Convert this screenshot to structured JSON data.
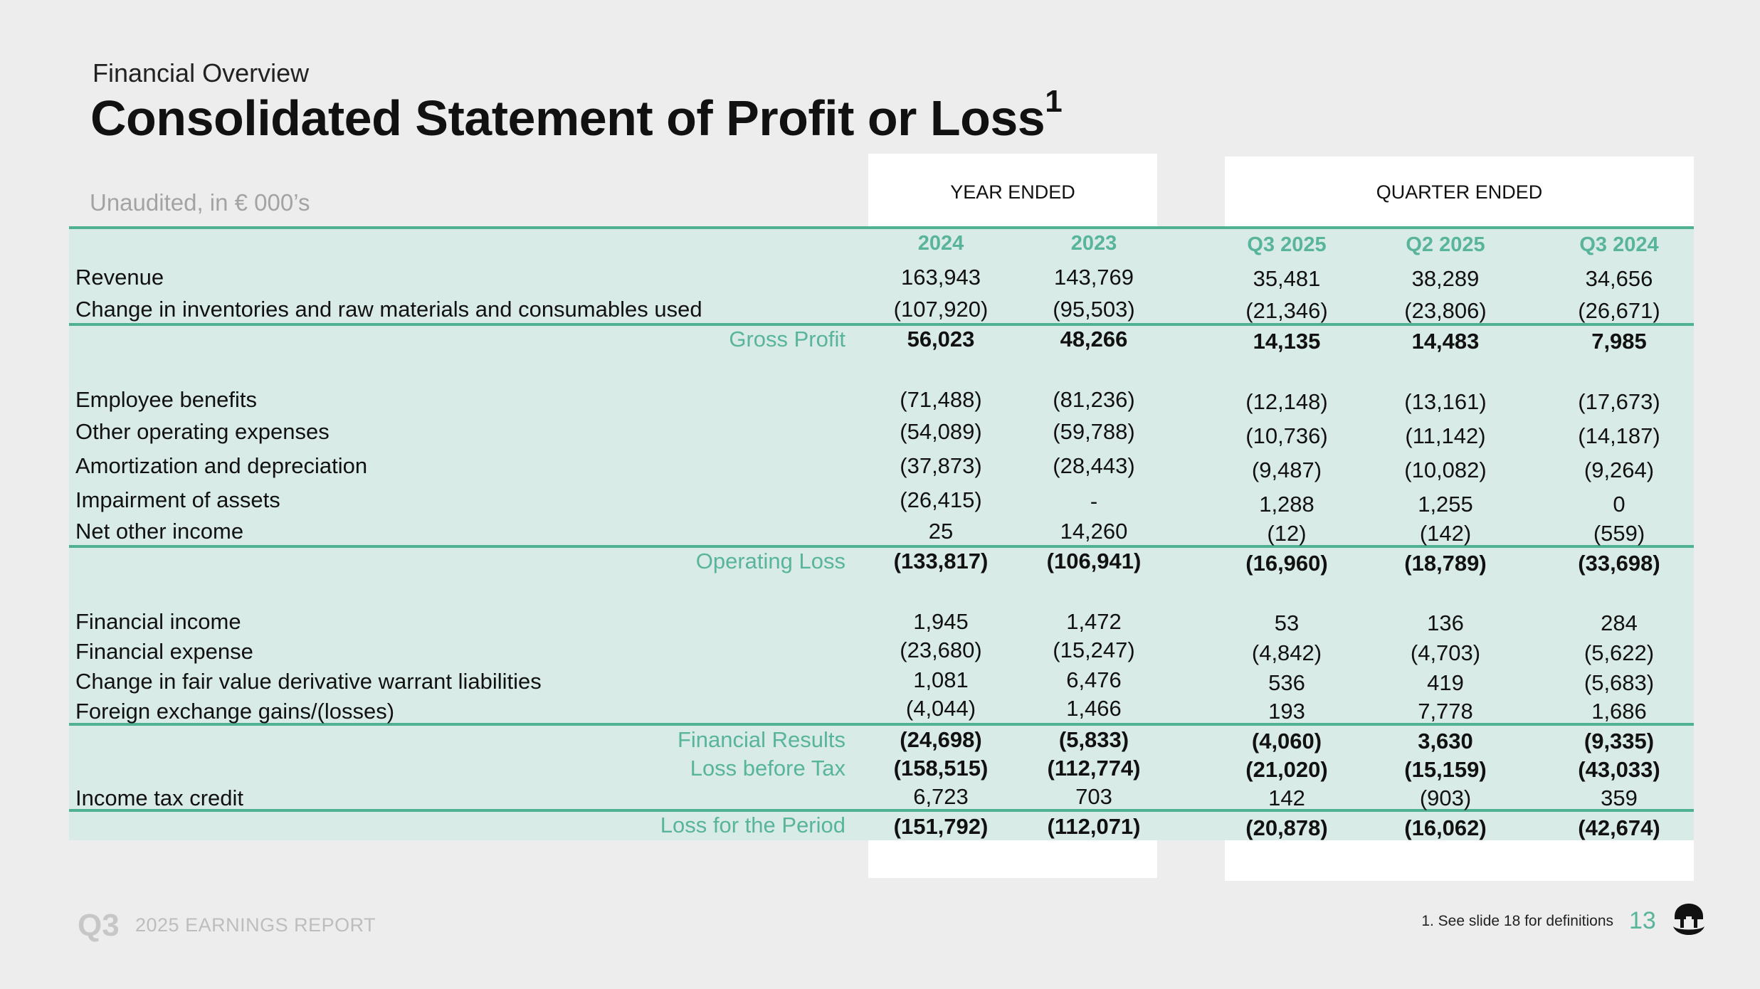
{
  "header": {
    "kicker": "Financial Overview",
    "title": "Consolidated Statement of Profit or Loss",
    "title_sup": "1",
    "subtitle": "Unaudited, in € 000’s"
  },
  "groups": {
    "year": "YEAR ENDED",
    "quarter": "QUARTER ENDED"
  },
  "columns": [
    "2024",
    "2023",
    "Q3 2025",
    "Q2 2025",
    "Q3 2024"
  ],
  "rows": [
    {
      "label": "Revenue",
      "values": [
        "163,943",
        "143,769",
        "35,481",
        "38,289",
        "34,656"
      ]
    },
    {
      "label": "Change in inventories and raw materials and consumables used",
      "values": [
        "(107,920)",
        "(95,503)",
        "(21,346)",
        "(23,806)",
        "(26,671)"
      ]
    },
    {
      "label": "Gross Profit",
      "values": [
        "56,023",
        "48,266",
        "14,135",
        "14,483",
        "7,985"
      ]
    },
    {
      "label": "Employee benefits",
      "values": [
        "(71,488)",
        "(81,236)",
        "(12,148)",
        "(13,161)",
        "(17,673)"
      ]
    },
    {
      "label": "Other operating expenses",
      "values": [
        "(54,089)",
        "(59,788)",
        "(10,736)",
        "(11,142)",
        "(14,187)"
      ]
    },
    {
      "label": "Amortization and depreciation",
      "values": [
        "(37,873)",
        "(28,443)",
        "(9,487)",
        "(10,082)",
        "(9,264)"
      ]
    },
    {
      "label": "Impairment of assets",
      "values": [
        "(26,415)",
        "-",
        "1,288",
        "1,255",
        "0"
      ]
    },
    {
      "label": "Net other income",
      "values": [
        "25",
        "14,260",
        "(12)",
        "(142)",
        "(559)"
      ]
    },
    {
      "label": "Operating Loss",
      "values": [
        "(133,817)",
        "(106,941)",
        "(16,960)",
        "(18,789)",
        "(33,698)"
      ]
    },
    {
      "label": "Financial income",
      "values": [
        "1,945",
        "1,472",
        "53",
        "136",
        "284"
      ]
    },
    {
      "label": "Financial expense",
      "values": [
        "(23,680)",
        "(15,247)",
        "(4,842)",
        "(4,703)",
        "(5,622)"
      ]
    },
    {
      "label": "Change in fair value derivative warrant liabilities",
      "values": [
        "1,081",
        "6,476",
        "536",
        "419",
        "(5,683)"
      ]
    },
    {
      "label": "Foreign exchange gains/(losses)",
      "values": [
        "(4,044)",
        "1,466",
        "193",
        "7,778",
        "1,686"
      ]
    },
    {
      "label": "Financial Results",
      "values": [
        "(24,698)",
        "(5,833)",
        "(4,060)",
        "3,630",
        "(9,335)"
      ]
    },
    {
      "label": "Loss before Tax",
      "values": [
        "(158,515)",
        "(112,774)",
        "(21,020)",
        "(15,159)",
        "(43,033)"
      ]
    },
    {
      "label": "Income tax credit",
      "values": [
        "6,723",
        "703",
        "142",
        "(903)",
        "359"
      ]
    },
    {
      "label": "Loss for the Period",
      "values": [
        "(151,792)",
        "(112,071)",
        "(20,878)",
        "(16,062)",
        "(42,674)"
      ]
    }
  ],
  "footer": {
    "quarter": "Q3",
    "report": "2025 EARNINGS REPORT",
    "note": "1. See slide 18 for definitions",
    "page_number": "13",
    "logo_icon": "mustache-logo-icon"
  },
  "colors": {
    "accent": "#58b49a",
    "rule": "#4fb092",
    "table_bg": "#d9ebe6",
    "page_bg": "#ededed"
  }
}
